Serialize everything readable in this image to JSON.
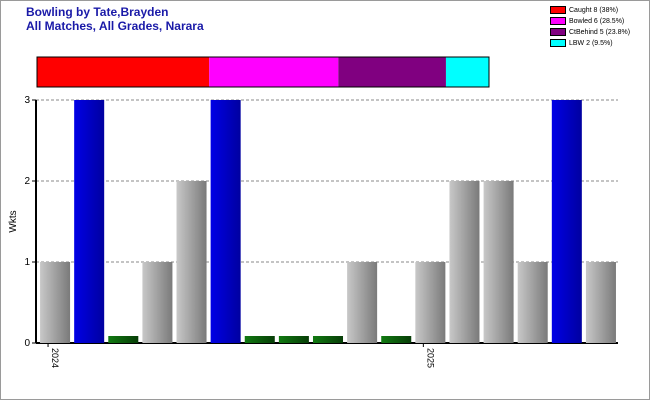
{
  "header": {
    "title": "Bowling by Tate,Brayden",
    "subtitle": "All Matches, All Grades, Narara"
  },
  "legend": [
    {
      "label": "Caught 8 (38%)",
      "color": "#ff0000"
    },
    {
      "label": "Bowled 6 (28.5%)",
      "color": "#ff00ff"
    },
    {
      "label": "CtBehind 5 (23.8%)",
      "color": "#800080"
    },
    {
      "label": "LBW 2 (9.5%)",
      "color": "#00ffff"
    }
  ],
  "chart_data": {
    "type": "bar",
    "title": "Bowling by Tate,Brayden",
    "subtitle": "All Matches, All Grades, Narara",
    "ylabel": "Wkts",
    "ylim": [
      0,
      3
    ],
    "yticks": [
      0,
      1,
      2,
      3
    ],
    "grid": true,
    "legend_position": "top-right",
    "values": [
      1,
      3,
      0,
      1,
      2,
      3,
      0,
      0,
      0,
      1,
      0,
      1,
      2,
      2,
      1,
      3,
      1
    ],
    "bar_colors": [
      "#9a9a9a",
      "#0000cc",
      "#0b5a0b",
      "#9a9a9a",
      "#9a9a9a",
      "#0000cc",
      "#0b5a0b",
      "#0b5a0b",
      "#0b5a0b",
      "#9a9a9a",
      "#0b5a0b",
      "#9a9a9a",
      "#9a9a9a",
      "#9a9a9a",
      "#9a9a9a",
      "#0000cc",
      "#9a9a9a"
    ],
    "x_labels": [
      {
        "text": "2024",
        "bar_index": 0
      },
      {
        "text": "2025",
        "bar_index": 11
      }
    ],
    "dismissals": [
      {
        "name": "Caught",
        "count": 8,
        "percent": 38,
        "color": "#ff0000"
      },
      {
        "name": "Bowled",
        "count": 6,
        "percent": 28.5,
        "color": "#ff00ff"
      },
      {
        "name": "CtBehind",
        "count": 5,
        "percent": 23.8,
        "color": "#800080"
      },
      {
        "name": "LBW",
        "count": 2,
        "percent": 9.5,
        "color": "#00ffff"
      }
    ]
  }
}
